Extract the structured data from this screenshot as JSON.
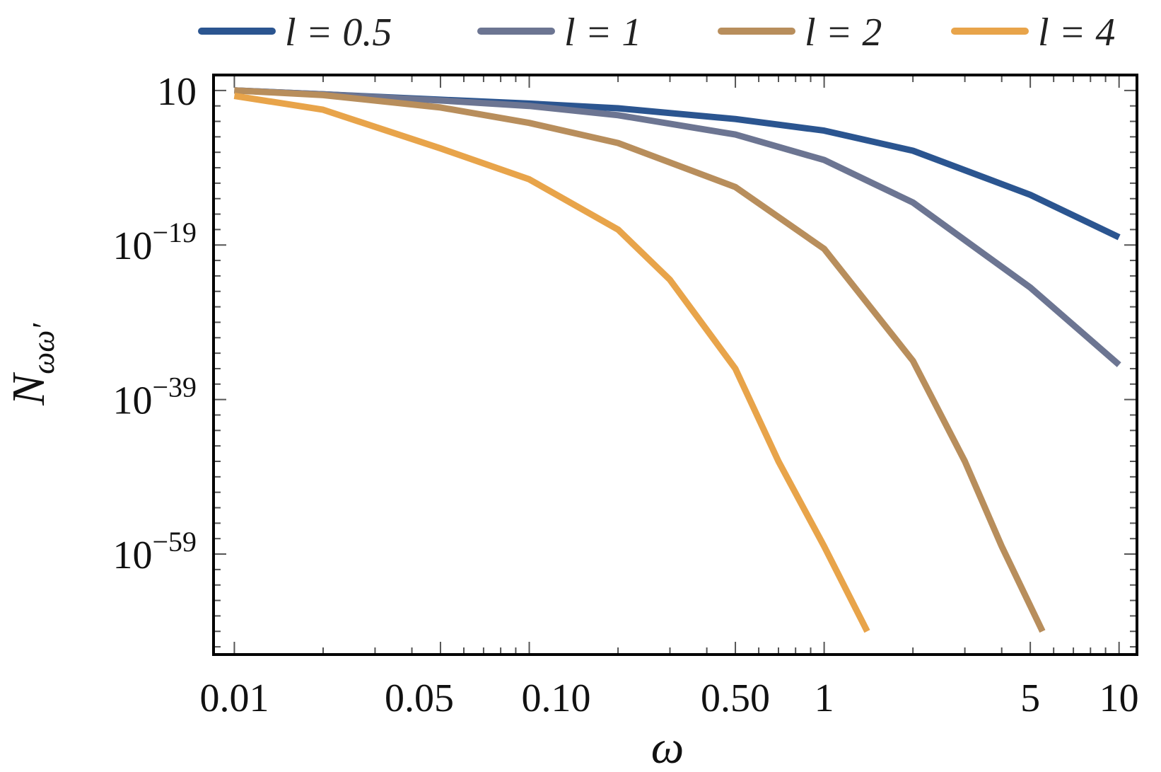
{
  "chart_data": {
    "type": "line",
    "title": "",
    "xlabel": "ω",
    "ylabel_main": "N",
    "ylabel_sub": "ωω′",
    "xscale": "log",
    "yscale": "log",
    "xlim": [
      0.0085,
      11.5
    ],
    "ylim_exp": [
      3,
      -72
    ],
    "xticks": [
      {
        "value": 0.01,
        "label": "0.01"
      },
      {
        "value": 0.05,
        "label": "0.05"
      },
      {
        "value": 0.1,
        "label": "0.10"
      },
      {
        "value": 0.5,
        "label": "0.50"
      },
      {
        "value": 1,
        "label": "1"
      },
      {
        "value": 5,
        "label": "5"
      },
      {
        "value": 10,
        "label": "10"
      }
    ],
    "yticks": [
      {
        "exp": 1,
        "base": "10",
        "sup": ""
      },
      {
        "exp": -19,
        "base": "10",
        "sup": "−19"
      },
      {
        "exp": -39,
        "base": "10",
        "sup": "−39"
      },
      {
        "exp": -59,
        "base": "10",
        "sup": "−59"
      }
    ],
    "legend_position": "top",
    "legend_var": "l",
    "series": [
      {
        "name": "0.5",
        "color": "#2b5590",
        "x": [
          0.01,
          0.02,
          0.05,
          0.1,
          0.2,
          0.5,
          1,
          2,
          5,
          10
        ],
        "log10_y": [
          1,
          0.5,
          -0.2,
          -0.7,
          -1.3,
          -2.7,
          -4.2,
          -6.8,
          -12.5,
          -18
        ]
      },
      {
        "name": "1",
        "color": "#6c7592",
        "x": [
          0.01,
          0.02,
          0.05,
          0.1,
          0.2,
          0.5,
          1,
          2,
          5,
          10
        ],
        "log10_y": [
          1,
          0.5,
          -0.3,
          -1,
          -2.2,
          -4.7,
          -8,
          -13.5,
          -24.5,
          -34.5
        ]
      },
      {
        "name": "2",
        "color": "#b88e5c",
        "x": [
          0.01,
          0.02,
          0.05,
          0.1,
          0.2,
          0.5,
          1,
          2,
          3,
          4,
          5.5
        ],
        "log10_y": [
          1,
          0.4,
          -1.2,
          -3.2,
          -5.8,
          -11.5,
          -19.5,
          -34,
          -47,
          -58,
          -69
        ]
      },
      {
        "name": "4",
        "color": "#e8a44a",
        "x": [
          0.01,
          0.02,
          0.05,
          0.1,
          0.2,
          0.3,
          0.5,
          0.7,
          1,
          1.4
        ],
        "log10_y": [
          0.3,
          -1.5,
          -6.5,
          -10.5,
          -17,
          -23.5,
          -35,
          -47,
          -58,
          -69
        ]
      }
    ]
  }
}
